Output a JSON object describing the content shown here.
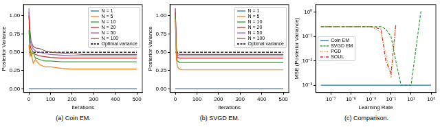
{
  "chart_data": [
    {
      "type": "line",
      "title": "(a) Coin EM.",
      "x_label": "Iterations",
      "y_label": "Posterior Variance",
      "x": [
        0,
        5,
        10,
        20,
        30,
        50,
        75,
        100,
        150,
        200,
        250,
        300,
        400,
        500
      ],
      "series": [
        {
          "name": "N = 1",
          "color": "#1f77b4",
          "line_style": "solid",
          "values": [
            0,
            0,
            0,
            0,
            0,
            0,
            0,
            0,
            0,
            0,
            0,
            0,
            0,
            0
          ]
        },
        {
          "name": "N = 5",
          "color": "#ff7f0e",
          "line_style": "solid",
          "values": [
            0.6,
            0.45,
            0.5,
            0.35,
            0.4,
            0.33,
            0.3,
            0.3,
            0.28,
            0.27,
            0.27,
            0.27,
            0.27,
            0.27
          ]
        },
        {
          "name": "N = 10",
          "color": "#2ca02c",
          "line_style": "solid",
          "values": [
            0.8,
            0.55,
            0.45,
            0.5,
            0.42,
            0.4,
            0.38,
            0.38,
            0.37,
            0.37,
            0.37,
            0.37,
            0.37,
            0.37
          ]
        },
        {
          "name": "N = 20",
          "color": "#d62728",
          "line_style": "solid",
          "values": [
            1.0,
            0.6,
            0.55,
            0.5,
            0.47,
            0.45,
            0.44,
            0.43,
            0.42,
            0.42,
            0.42,
            0.42,
            0.42,
            0.42
          ]
        },
        {
          "name": "N = 50",
          "color": "#9467bd",
          "line_style": "solid",
          "values": [
            1.1,
            0.7,
            0.6,
            0.55,
            0.52,
            0.5,
            0.48,
            0.47,
            0.46,
            0.45,
            0.45,
            0.45,
            0.45,
            0.45
          ]
        },
        {
          "name": "N = 100",
          "color": "#8c564b",
          "line_style": "solid",
          "values": [
            1.05,
            0.8,
            0.65,
            0.58,
            0.56,
            0.55,
            0.52,
            0.5,
            0.49,
            0.48,
            0.47,
            0.47,
            0.47,
            0.47
          ]
        },
        {
          "name": "Optimal variance",
          "color": "#000000",
          "line_style": "dashed",
          "values": [
            0.5,
            0.5,
            0.5,
            0.5,
            0.5,
            0.5,
            0.5,
            0.5,
            0.5,
            0.5,
            0.5,
            0.5,
            0.5,
            0.5
          ]
        }
      ],
      "xlim": [
        -25,
        525
      ],
      "xticks": [
        0,
        100,
        200,
        300,
        400,
        500
      ],
      "ylim": [
        -0.05,
        1.15
      ],
      "yticks": [
        {
          "value": 0,
          "label": "0.00"
        },
        {
          "value": 0.25,
          "label": "0.25"
        },
        {
          "value": 0.5,
          "label": "0.50"
        },
        {
          "value": 0.75,
          "label": "0.75"
        },
        {
          "value": 1,
          "label": "1.00"
        }
      ],
      "grid": false,
      "legend": "upper right"
    },
    {
      "type": "line",
      "title": "(b) SVGD EM.",
      "x_label": "Iterations",
      "y_label": "Posterior Variance",
      "x": [
        0,
        5,
        10,
        20,
        30,
        50,
        75,
        100,
        150,
        200,
        250,
        300,
        400,
        500
      ],
      "series": [
        {
          "name": "N = 1",
          "color": "#1f77b4",
          "line_style": "solid",
          "values": [
            0,
            0,
            0,
            0,
            0,
            0,
            0,
            0,
            0,
            0,
            0,
            0,
            0,
            0
          ]
        },
        {
          "name": "N = 5",
          "color": "#ff7f0e",
          "line_style": "solid",
          "values": [
            0.95,
            0.4,
            0.3,
            0.27,
            0.26,
            0.26,
            0.26,
            0.26,
            0.26,
            0.26,
            0.26,
            0.26,
            0.26,
            0.26
          ]
        },
        {
          "name": "N = 10",
          "color": "#2ca02c",
          "line_style": "solid",
          "values": [
            1.0,
            0.45,
            0.38,
            0.36,
            0.36,
            0.36,
            0.36,
            0.36,
            0.36,
            0.36,
            0.36,
            0.36,
            0.36,
            0.36
          ]
        },
        {
          "name": "N = 20",
          "color": "#d62728",
          "line_style": "solid",
          "values": [
            1.05,
            0.5,
            0.43,
            0.42,
            0.42,
            0.42,
            0.42,
            0.42,
            0.42,
            0.42,
            0.42,
            0.42,
            0.42,
            0.42
          ]
        },
        {
          "name": "N = 50",
          "color": "#9467bd",
          "line_style": "solid",
          "values": [
            1.1,
            0.52,
            0.46,
            0.45,
            0.45,
            0.45,
            0.45,
            0.45,
            0.45,
            0.45,
            0.45,
            0.45,
            0.45,
            0.45
          ]
        },
        {
          "name": "N = 100",
          "color": "#8c564b",
          "line_style": "solid",
          "values": [
            1.1,
            0.55,
            0.48,
            0.47,
            0.47,
            0.47,
            0.47,
            0.47,
            0.47,
            0.47,
            0.47,
            0.47,
            0.47,
            0.47
          ]
        },
        {
          "name": "Optimal variance",
          "color": "#000000",
          "line_style": "dashed",
          "values": [
            0.5,
            0.5,
            0.5,
            0.5,
            0.5,
            0.5,
            0.5,
            0.5,
            0.5,
            0.5,
            0.5,
            0.5,
            0.5,
            0.5
          ]
        }
      ],
      "xlim": [
        -25,
        525
      ],
      "xticks": [
        0,
        100,
        200,
        300,
        400,
        500
      ],
      "ylim": [
        -0.05,
        1.15
      ],
      "yticks": [
        {
          "value": 0,
          "label": "0.00"
        },
        {
          "value": 0.25,
          "label": "0.25"
        },
        {
          "value": 0.5,
          "label": "0.50"
        },
        {
          "value": 0.75,
          "label": "0.75"
        },
        {
          "value": 1,
          "label": "1.00"
        }
      ],
      "grid": false,
      "legend": "upper right"
    },
    {
      "type": "line",
      "title": "(c) Comparison.",
      "x_label": "Learning Rate",
      "y_label": "MSE (Posterior Variance)",
      "x": [
        1e-08,
        1e-07,
        1e-06,
        1e-05,
        0.0001,
        0.001,
        0.01,
        0.03,
        0.1,
        0.3,
        1,
        10,
        100,
        1000
      ],
      "series": [
        {
          "name": "Coin EM",
          "color": "#1f77b4",
          "line_style": "solid",
          "values": [
            0.001,
            0.001,
            0.001,
            0.001,
            0.001,
            0.001,
            0.001,
            0.001,
            0.001,
            0.001,
            0.001,
            0.001,
            0.001,
            0.001
          ]
        },
        {
          "name": "SVGD EM",
          "color": "#2ca02c",
          "line_style": "dashed",
          "values": [
            0.25,
            0.25,
            0.25,
            0.25,
            0.25,
            0.25,
            0.25,
            0.2,
            0.1,
            0.01,
            0.001,
            0.001,
            1.2,
            null
          ]
        },
        {
          "name": "PGD",
          "color": "#ff7f0e",
          "line_style": "dotted",
          "values": [
            0.25,
            0.25,
            0.25,
            0.25,
            0.25,
            0.25,
            0.15,
            0.02,
            0.002,
            0.3,
            null,
            null,
            null,
            null
          ]
        },
        {
          "name": "SOUL",
          "color": "#d62728",
          "line_style": "dashdot",
          "values": [
            0.25,
            0.25,
            0.25,
            0.25,
            0.25,
            0.25,
            0.2,
            0.01,
            0.003,
            0.3,
            null,
            null,
            null,
            null
          ]
        }
      ],
      "log": true,
      "xlim": [
        3e-09,
        3000
      ],
      "xticks": [
        {
          "value": 1e-07,
          "label": "10⁻⁷"
        },
        {
          "value": 1e-05,
          "label": "10⁻⁵"
        },
        {
          "value": 0.001,
          "label": "10⁻³"
        },
        {
          "value": 0.1,
          "label": "10⁻¹"
        },
        {
          "value": 10,
          "label": "10¹"
        },
        {
          "value": 1000,
          "label": "10³"
        }
      ],
      "ylim": [
        0.0005,
        2
      ],
      "yticks": [
        {
          "value": 0.001,
          "label": "10⁻³"
        },
        {
          "value": 0.01,
          "label": "10⁻²"
        },
        {
          "value": 0.1,
          "label": "10⁻¹"
        },
        {
          "value": 1,
          "label": "10⁰"
        }
      ],
      "grid": false,
      "legend": "center left"
    }
  ]
}
